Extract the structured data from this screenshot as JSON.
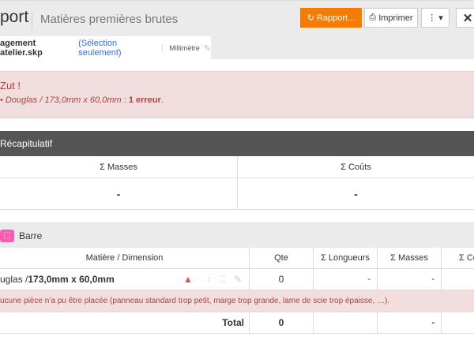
{
  "header": {
    "title": "port",
    "subtitle": "Matières premières brutes",
    "buttons": {
      "report": "Rapport...",
      "print": "Imprimer",
      "more_icon": "vertical-dots",
      "close_icon": "close"
    }
  },
  "tab": {
    "filename": "agement atelier.skp",
    "selection": "(Sélection seulement)",
    "unit": "Millimètre"
  },
  "error": {
    "title": "Zut !",
    "item": "Douglas / 173,0mm x 60,0mm",
    "sep": " : ",
    "count": "1 erreur",
    "end": "."
  },
  "summary": {
    "title": "Récapitulatif",
    "columns": [
      "Σ Masses",
      "Σ Coûts"
    ],
    "values": [
      "-",
      "-"
    ]
  },
  "group": {
    "title": "Barre",
    "icon": "box-icon",
    "color": "#ff5bb5",
    "columns": [
      "Matière / Dimension",
      "Qte",
      "Σ Longueurs",
      "Σ Masses",
      "Σ Co"
    ],
    "row": {
      "material": "uglas / ",
      "dimension": "173,0mm x 60,0mm",
      "qte": "0",
      "lengths": "-",
      "masses": "-",
      "costs": ""
    },
    "row_error": "ucune pièce n’a pu être placée (panneau standard trop petit, marge trop grande, lame de scie trop épaisse, …).",
    "total": {
      "label": "Total",
      "qte": "0",
      "lengths": "",
      "masses": "-",
      "costs": ""
    }
  },
  "colors": {
    "accent": "#f57c00",
    "error_bg": "#f2dede",
    "error_text": "#a94442",
    "link": "#3d6bff"
  }
}
